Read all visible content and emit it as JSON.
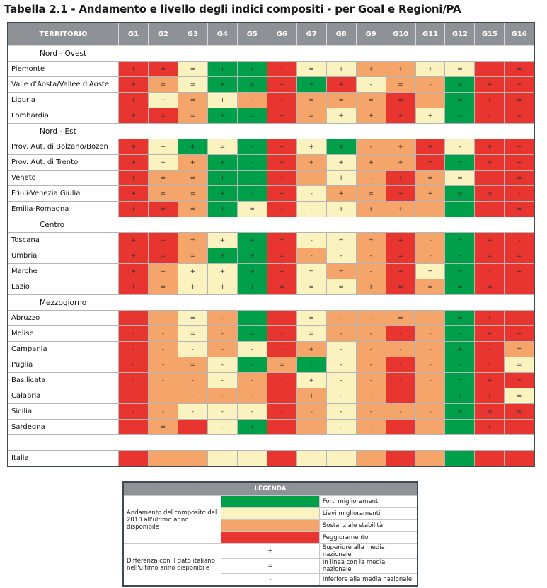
{
  "title": "Tabella 2.1 - Andamento e livello degli indici compositi - per Goal e Regioni/PA",
  "palette": {
    "R": "#e8352f",
    "O": "#f5a46a",
    "Y": "#faf3c0",
    "G": "#00a04b"
  },
  "header": {
    "territorio": "TERRITORIO",
    "goals": [
      "G1",
      "G2",
      "G3",
      "G4",
      "G5",
      "G6",
      "G7",
      "G8",
      "G9",
      "G10",
      "G11",
      "G12",
      "G15",
      "G16"
    ]
  },
  "rows": [
    {
      "type": "group",
      "name": "Nord - Ovest"
    },
    {
      "type": "region",
      "name": "Piemonte",
      "cells": [
        "R+",
        "R=",
        "Y=",
        "G+",
        "G+",
        "R+",
        "Y=",
        "Y+",
        "O+",
        "O+",
        "Y+",
        "Y=",
        "R-",
        "R="
      ]
    },
    {
      "type": "region",
      "name": "Valle d'Aosta/Vallée d'Aoste",
      "cells": [
        "R+",
        "O=",
        "Y=",
        "G+",
        "G=",
        "R+",
        "G+",
        "R+",
        "Y-",
        "O=",
        "O-",
        "G=",
        "R+",
        "R+"
      ]
    },
    {
      "type": "region",
      "name": "Liguria",
      "cells": [
        "R+",
        "Y+",
        "O=",
        "Y+",
        "O-",
        "R+",
        "O=",
        "O=",
        "O=",
        "R=",
        "O-",
        "G=",
        "R+",
        "R="
      ]
    },
    {
      "type": "region",
      "name": "Lombardia",
      "cells": [
        "R+",
        "R=",
        "O=",
        "G+",
        "G=",
        "R+",
        "O=",
        "Y+",
        "O+",
        "R+",
        "Y+",
        "G=",
        "R-",
        "R="
      ]
    },
    {
      "type": "group",
      "name": "Nord - Est"
    },
    {
      "type": "region",
      "name": "Prov. Aut. di Bolzano/Bozen",
      "cells": [
        "R+",
        "Y+",
        "G+",
        "Y=",
        "G-",
        "R+",
        "Y+",
        "G+",
        "O-",
        "O+",
        "R+",
        "Y-",
        "R+",
        "R+"
      ]
    },
    {
      "type": "region",
      "name": "Prov. Aut. di Trento",
      "cells": [
        "R+",
        "Y+",
        "O+",
        "G+",
        "G-",
        "R+",
        "O+",
        "Y+",
        "O+",
        "O+",
        "R=",
        "G=",
        "R+",
        "R+"
      ]
    },
    {
      "type": "region",
      "name": "Veneto",
      "cells": [
        "R+",
        "O=",
        "O=",
        "G+",
        "G-",
        "R+",
        "O-",
        "Y+",
        "O-",
        "R+",
        "O=",
        "Y=",
        "R-",
        "R="
      ]
    },
    {
      "type": "region",
      "name": "Friuli-Venezia Giulia",
      "cells": [
        "R+",
        "O=",
        "O=",
        "G+",
        "G-",
        "R+",
        "Y-",
        "O+",
        "O=",
        "R+",
        "O+",
        "G=",
        "R=",
        "R-"
      ]
    },
    {
      "type": "region",
      "name": "Emilia-Romagna",
      "cells": [
        "R+",
        "R=",
        "O=",
        "G+",
        "Y=",
        "R+",
        "Y-",
        "Y+",
        "O+",
        "O+",
        "O-",
        "G-",
        "R-",
        "R="
      ]
    },
    {
      "type": "group",
      "name": "Centro"
    },
    {
      "type": "region",
      "name": "Toscana",
      "cells": [
        "R+",
        "R+",
        "O=",
        "Y+",
        "G+",
        "R=",
        "Y-",
        "Y=",
        "O=",
        "R+",
        "O-",
        "G=",
        "R+",
        "R-"
      ]
    },
    {
      "type": "region",
      "name": "Umbria",
      "cells": [
        "R+",
        "R=",
        "O=",
        "G+",
        "G+",
        "R=",
        "O-",
        "Y-",
        "O-",
        "R=",
        "O-",
        "G-",
        "R=",
        "R="
      ]
    },
    {
      "type": "region",
      "name": "Marche",
      "cells": [
        "R+",
        "O+",
        "Y+",
        "Y+",
        "G+",
        "R+",
        "Y=",
        "O=",
        "O-",
        "R+",
        "Y=",
        "G=",
        "R-",
        "R+"
      ]
    },
    {
      "type": "region",
      "name": "Lazio",
      "cells": [
        "R+",
        "O=",
        "Y+",
        "Y+",
        "G+",
        "R=",
        "Y=",
        "Y=",
        "O+",
        "R=",
        "O=",
        "G=",
        "R=",
        "R-"
      ]
    },
    {
      "type": "group",
      "name": "Mezzogiorno"
    },
    {
      "type": "region",
      "name": "Abruzzo",
      "cells": [
        "R-",
        "O-",
        "Y=",
        "O-",
        "G-",
        "R-",
        "Y=",
        "O-",
        "O-",
        "O=",
        "O-",
        "G=",
        "R+",
        "R+"
      ]
    },
    {
      "type": "region",
      "name": "Molise",
      "cells": [
        "R-",
        "O-",
        "Y=",
        "O-",
        "G=",
        "R-",
        "Y=",
        "O-",
        "O-",
        "R-",
        "O-",
        "G-",
        "R+",
        "R+"
      ]
    },
    {
      "type": "region",
      "name": "Campania",
      "cells": [
        "R-",
        "O-",
        "Y-",
        "O-",
        "Y-",
        "R-",
        "O+",
        "Y-",
        "O-",
        "O-",
        "O-",
        "G+",
        "R-",
        "O="
      ]
    },
    {
      "type": "region",
      "name": "Puglia",
      "cells": [
        "R-",
        "O-",
        "O=",
        "Y-",
        "G-",
        "O=",
        "G-",
        "Y-",
        "O-",
        "R-",
        "O-",
        "G-",
        "R-",
        "Y="
      ]
    },
    {
      "type": "region",
      "name": "Basilicata",
      "cells": [
        "R-",
        "O-",
        "O-",
        "Y-",
        "O-",
        "R-",
        "Y+",
        "Y-",
        "O-",
        "R-",
        "O-",
        "G=",
        "R+",
        "R="
      ]
    },
    {
      "type": "region",
      "name": "Calabria",
      "cells": [
        "R-",
        "O-",
        "O-",
        "O-",
        "O-",
        "R-",
        "O+",
        "Y-",
        "O-",
        "R-",
        "O-",
        "G+",
        "R+",
        "Y="
      ]
    },
    {
      "type": "region",
      "name": "Sicilia",
      "cells": [
        "R-",
        "O-",
        "Y-",
        "Y-",
        "Y-",
        "R-",
        "O-",
        "Y-",
        "O-",
        "O-",
        "O-",
        "G=",
        "R=",
        "R="
      ]
    },
    {
      "type": "region",
      "name": "Sardegna",
      "cells": [
        "R-",
        "O=",
        "R-",
        "Y-",
        "G+",
        "R-",
        "O-",
        "Y-",
        "O-",
        "R-",
        "O-",
        "G-",
        "R+",
        "R+"
      ]
    },
    {
      "type": "spacer",
      "name": ""
    },
    {
      "type": "region",
      "name": "Italia",
      "cells": [
        "R",
        "O",
        "O",
        "Y",
        "Y",
        "R",
        "Y",
        "Y",
        "O",
        "R",
        "O",
        "G",
        "R",
        "R"
      ]
    }
  ],
  "legend": {
    "title": "LEGENDA",
    "trend_label": "Andamento del composito dal 2010 all'ultimo anno disponibile",
    "trend_items": [
      {
        "color": "G",
        "label": "Forti miglioramenti"
      },
      {
        "color": "Y",
        "label": "Lievi miglioramenti"
      },
      {
        "color": "O",
        "label": "Sostanziale stabilità"
      },
      {
        "color": "R",
        "label": "Peggioramento"
      }
    ],
    "diff_label": "Differenza con il dato italiano nell'ultimo anno disponibile",
    "diff_items": [
      {
        "symbol": "+",
        "label": "Superiore alla media nazionale"
      },
      {
        "symbol": "=",
        "label": "In linea con la media nazionale"
      },
      {
        "symbol": "-",
        "label": "Inferiore alla media nazionale"
      }
    ]
  }
}
